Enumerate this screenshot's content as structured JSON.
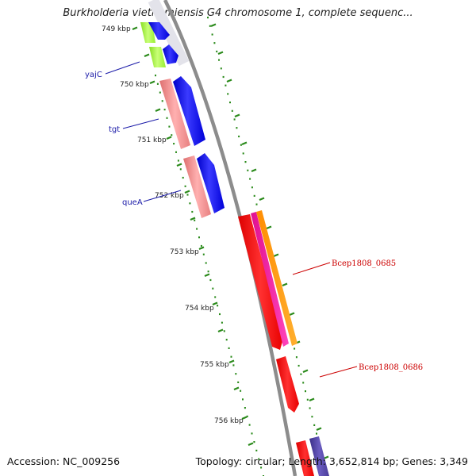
{
  "title": "Burkholderia vietnamiensis G4 chromosome 1, complete sequenc...",
  "footer": {
    "accession": "Accession: NC_009256",
    "summary": "Topology: circular; Length: 3,652,814 bp; Genes: 3,349"
  },
  "ticks": [
    "749 kbp",
    "750 kbp",
    "751 kbp",
    "752 kbp",
    "753 kbp",
    "754 kbp",
    "755 kbp",
    "756 kbp"
  ],
  "gene_labels_left": [
    "yajC",
    "tgt",
    "queA"
  ],
  "gene_labels_right": [
    "Bcep1808_0685",
    "Bcep1808_0686"
  ],
  "colors": {
    "backbone": "#8c8c8c",
    "tick": "#2a8a1a",
    "dot": "#2a8a1a",
    "cds_blue": "#0000ee",
    "gene_green": "#99ee33",
    "gene_salmon": "#ee8a8a",
    "gene_red": "#ee0000",
    "magenta": "#ee1aa0",
    "orange": "#ff9900",
    "purple": "#4a3d99",
    "label_left": "#1a1aa8",
    "label_right": "#cc0000"
  }
}
